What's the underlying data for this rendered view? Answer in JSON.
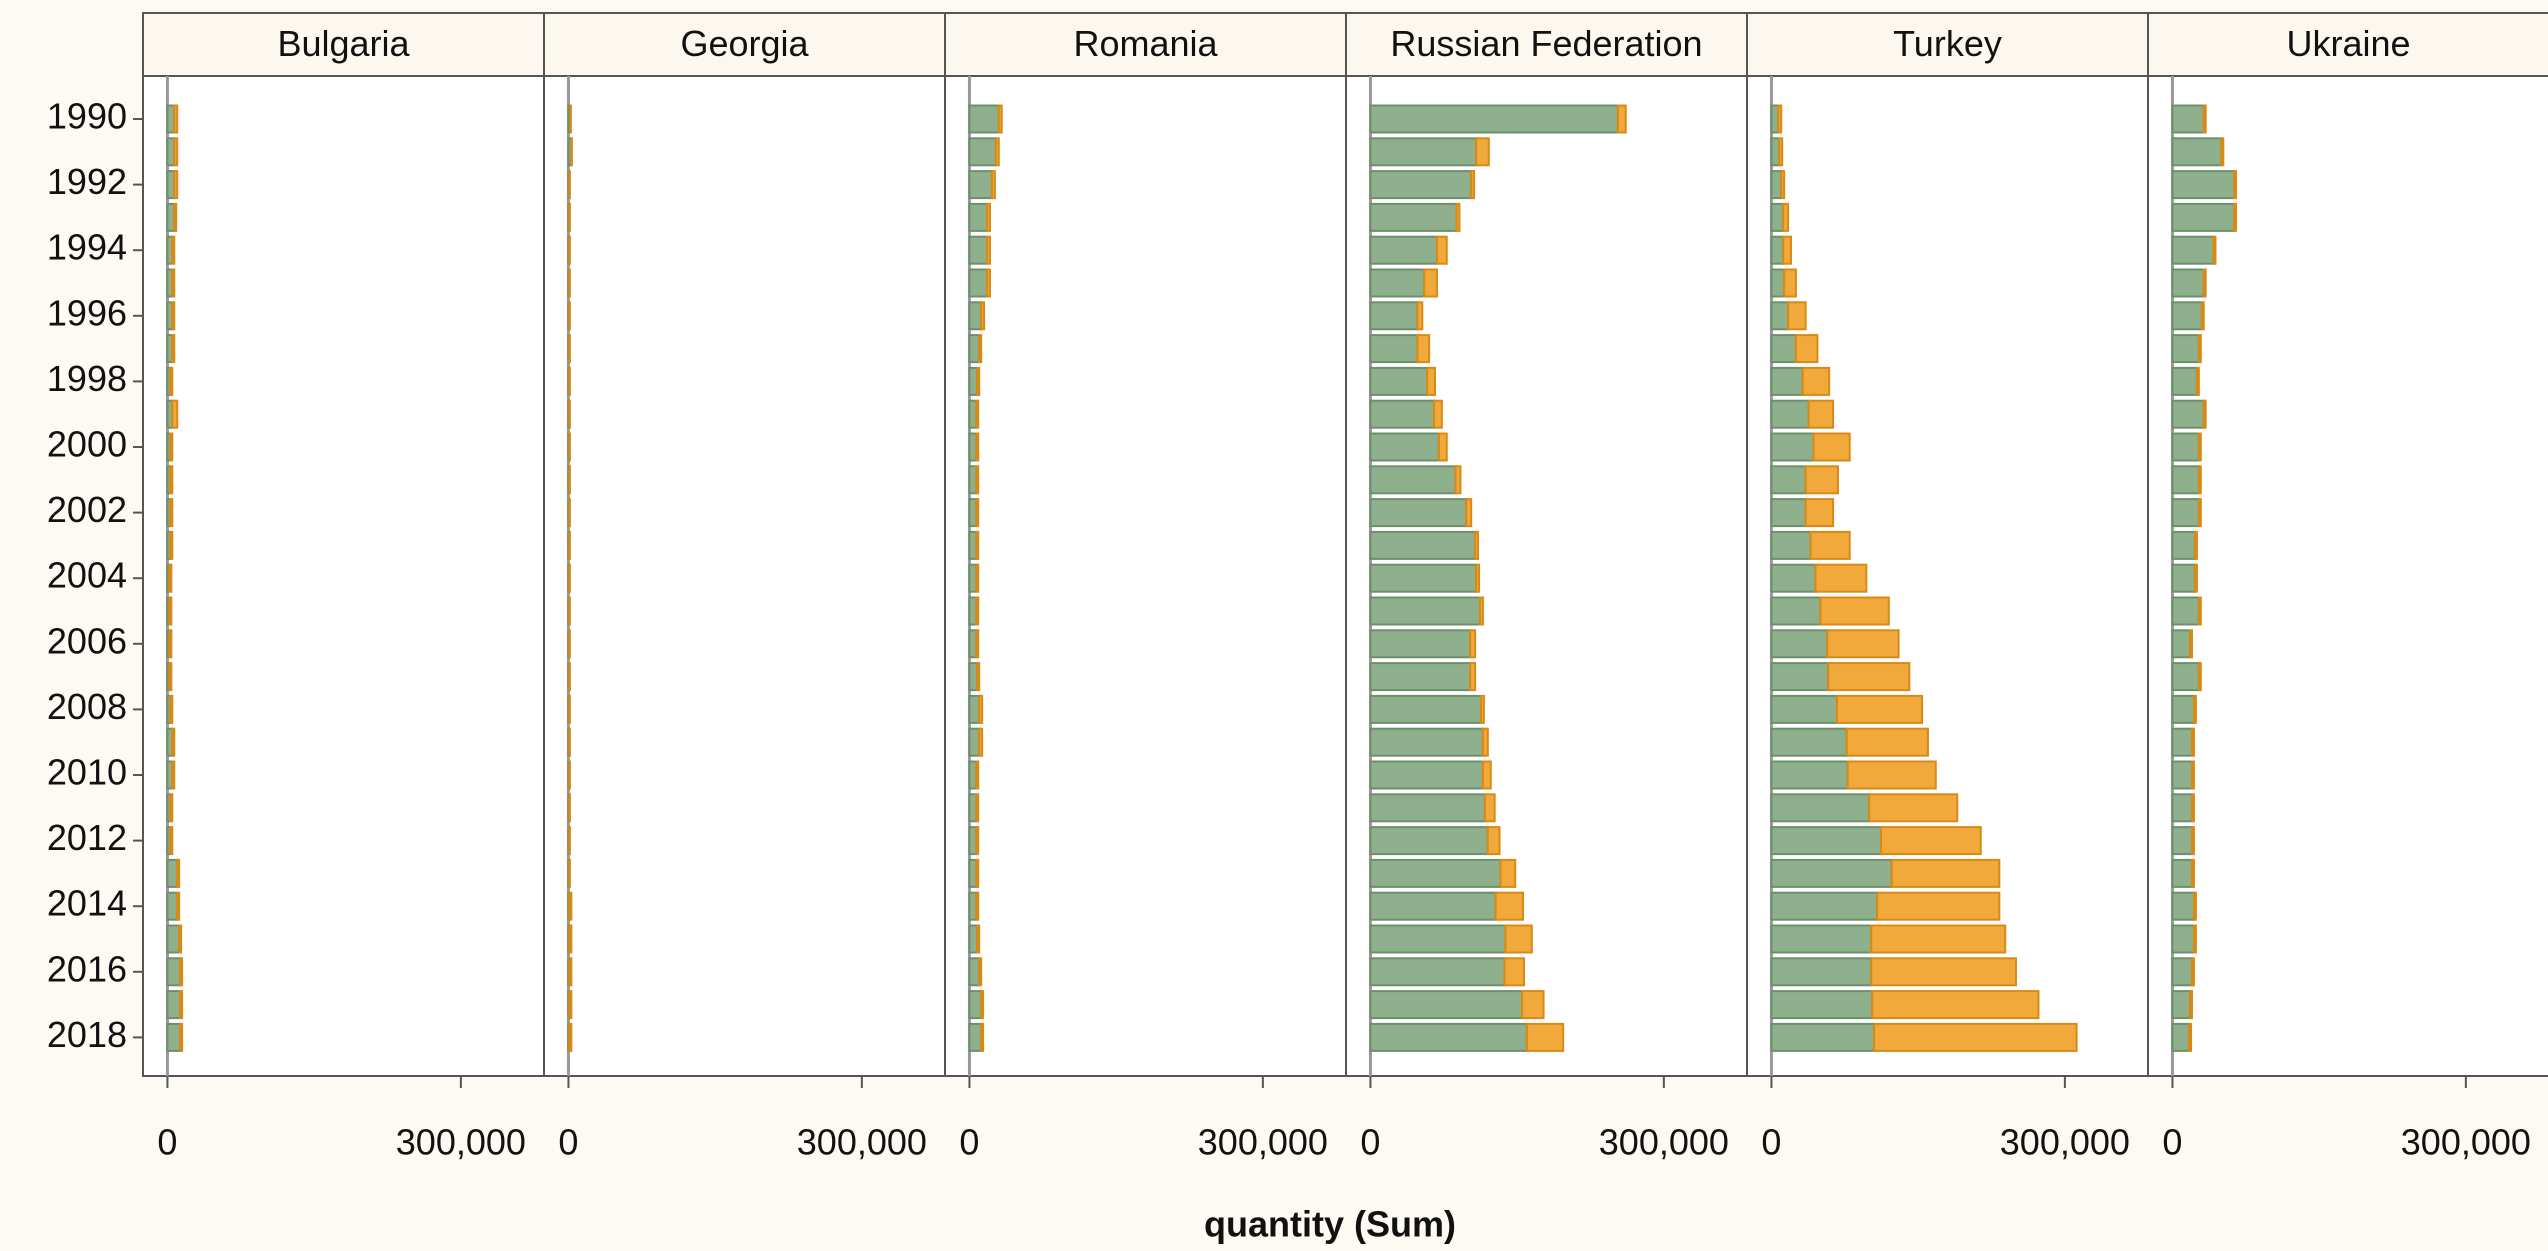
{
  "chart_data": {
    "type": "bar",
    "orientation": "horizontal",
    "stacked": true,
    "x_label": "quantity (Sum)",
    "categories": [
      1990,
      null,
      1992,
      null,
      1994,
      null,
      1996,
      null,
      1998,
      null,
      2000,
      null,
      2002,
      null,
      2004,
      null,
      2006,
      null,
      2008,
      null,
      2010,
      null,
      2012,
      null,
      2014,
      null,
      2016,
      null,
      2018
    ],
    "xlim": [
      -25000,
      385000
    ],
    "xticks": [
      0,
      {
        "value": 300000,
        "label": "300,000"
      }
    ],
    "panels": [
      {
        "title": "Bulgaria",
        "series": [
          {
            "color": "#8fb08c",
            "values": [
              7000,
              7000,
              7000,
              7000,
              5000,
              5000,
              5000,
              5000,
              3000,
              5000,
              3000,
              3000,
              3000,
              3000,
              2000,
              2000,
              2000,
              2000,
              3000,
              5000,
              5000,
              3000,
              3000,
              10000,
              10000,
              12000,
              13000,
              13000,
              13000
            ]
          },
          {
            "color": "#f0a93a",
            "values": [
              3000,
              3000,
              3000,
              2000,
              2000,
              2000,
              2000,
              2000,
              2000,
              5000,
              2000,
              2000,
              2000,
              2000,
              2000,
              2000,
              2000,
              2000,
              2000,
              2000,
              2000,
              2000,
              2000,
              2000,
              2000,
              2000,
              2000,
              2000,
              2000
            ]
          }
        ]
      },
      {
        "title": "Georgia",
        "series": [
          {
            "color": "#8fb08c",
            "values": [
              2000,
              3000,
              1000,
              1000,
              1000,
              1000,
              1000,
              1000,
              1000,
              1000,
              1000,
              1000,
              1000,
              1000,
              1000,
              1000,
              1000,
              1000,
              1000,
              1000,
              1000,
              1000,
              1000,
              1000,
              1000,
              1000,
              1000,
              1000,
              1000
            ]
          },
          {
            "color": "#f0a93a",
            "values": [
              500,
              500,
              500,
              500,
              500,
              500,
              500,
              500,
              500,
              500,
              500,
              500,
              500,
              500,
              500,
              500,
              500,
              500,
              500,
              500,
              500,
              500,
              500,
              500,
              2000,
              2000,
              2000,
              2000,
              2000
            ]
          }
        ]
      },
      {
        "title": "Romania",
        "series": [
          {
            "color": "#8fb08c",
            "values": [
              30000,
              27000,
              23000,
              18000,
              18000,
              18000,
              12000,
              10000,
              8000,
              7000,
              7000,
              7000,
              7000,
              7000,
              7000,
              7000,
              7000,
              8000,
              10000,
              10000,
              7000,
              7000,
              7000,
              7000,
              7000,
              8000,
              10000,
              12000,
              12000
            ]
          },
          {
            "color": "#f0a93a",
            "values": [
              3000,
              3000,
              3000,
              3000,
              3000,
              3000,
              3000,
              2000,
              2000,
              2000,
              2000,
              2000,
              2000,
              2000,
              2000,
              2000,
              2000,
              2000,
              3000,
              3000,
              2000,
              2000,
              2000,
              2000,
              2000,
              2000,
              2000,
              2000,
              2000
            ]
          }
        ]
      },
      {
        "title": "Russian Federation",
        "series": [
          {
            "color": "#8fb08c",
            "values": [
              253000,
              108000,
              103000,
              88000,
              68000,
              55000,
              48000,
              48000,
              58000,
              65000,
              70000,
              87000,
              98000,
              107000,
              108000,
              112000,
              102000,
              102000,
              113000,
              115000,
              115000,
              117000,
              120000,
              133000,
              128000,
              138000,
              137000,
              155000,
              160000
            ]
          },
          {
            "color": "#f0a93a",
            "values": [
              8000,
              13000,
              3000,
              3000,
              10000,
              13000,
              5000,
              12000,
              8000,
              8000,
              8000,
              5000,
              5000,
              3000,
              3000,
              3000,
              5000,
              5000,
              3000,
              5000,
              8000,
              10000,
              12000,
              15000,
              28000,
              27000,
              20000,
              22000,
              37000
            ]
          }
        ]
      },
      {
        "title": "Turkey",
        "series": [
          {
            "color": "#8fb08c",
            "values": [
              7000,
              8000,
              10000,
              12000,
              12000,
              13000,
              17000,
              25000,
              32000,
              38000,
              43000,
              35000,
              35000,
              40000,
              45000,
              50000,
              57000,
              58000,
              67000,
              77000,
              78000,
              100000,
              112000,
              123000,
              108000,
              102000,
              102000,
              103000,
              105000
            ]
          },
          {
            "color": "#f0a93a",
            "values": [
              3000,
              3000,
              3000,
              5000,
              8000,
              12000,
              18000,
              22000,
              27000,
              25000,
              37000,
              33000,
              28000,
              40000,
              52000,
              70000,
              73000,
              83000,
              87000,
              83000,
              90000,
              90000,
              102000,
              110000,
              125000,
              137000,
              148000,
              170000,
              207000
            ]
          }
        ]
      },
      {
        "title": "Ukraine",
        "series": [
          {
            "color": "#8fb08c",
            "values": [
              32000,
              50000,
              63000,
              63000,
              42000,
              32000,
              30000,
              27000,
              25000,
              32000,
              27000,
              27000,
              27000,
              23000,
              23000,
              27000,
              18000,
              27000,
              22000,
              20000,
              20000,
              20000,
              20000,
              20000,
              22000,
              22000,
              20000,
              18000,
              17000
            ]
          },
          {
            "color": "#f0a93a",
            "values": [
              2000,
              2000,
              2000,
              2000,
              2000,
              2000,
              2000,
              2000,
              2000,
              2000,
              2000,
              2000,
              2000,
              2000,
              2000,
              2000,
              2000,
              2000,
              2000,
              2000,
              2000,
              2000,
              2000,
              2000,
              2000,
              2000,
              2000,
              2000,
              2000
            ]
          }
        ]
      }
    ]
  }
}
